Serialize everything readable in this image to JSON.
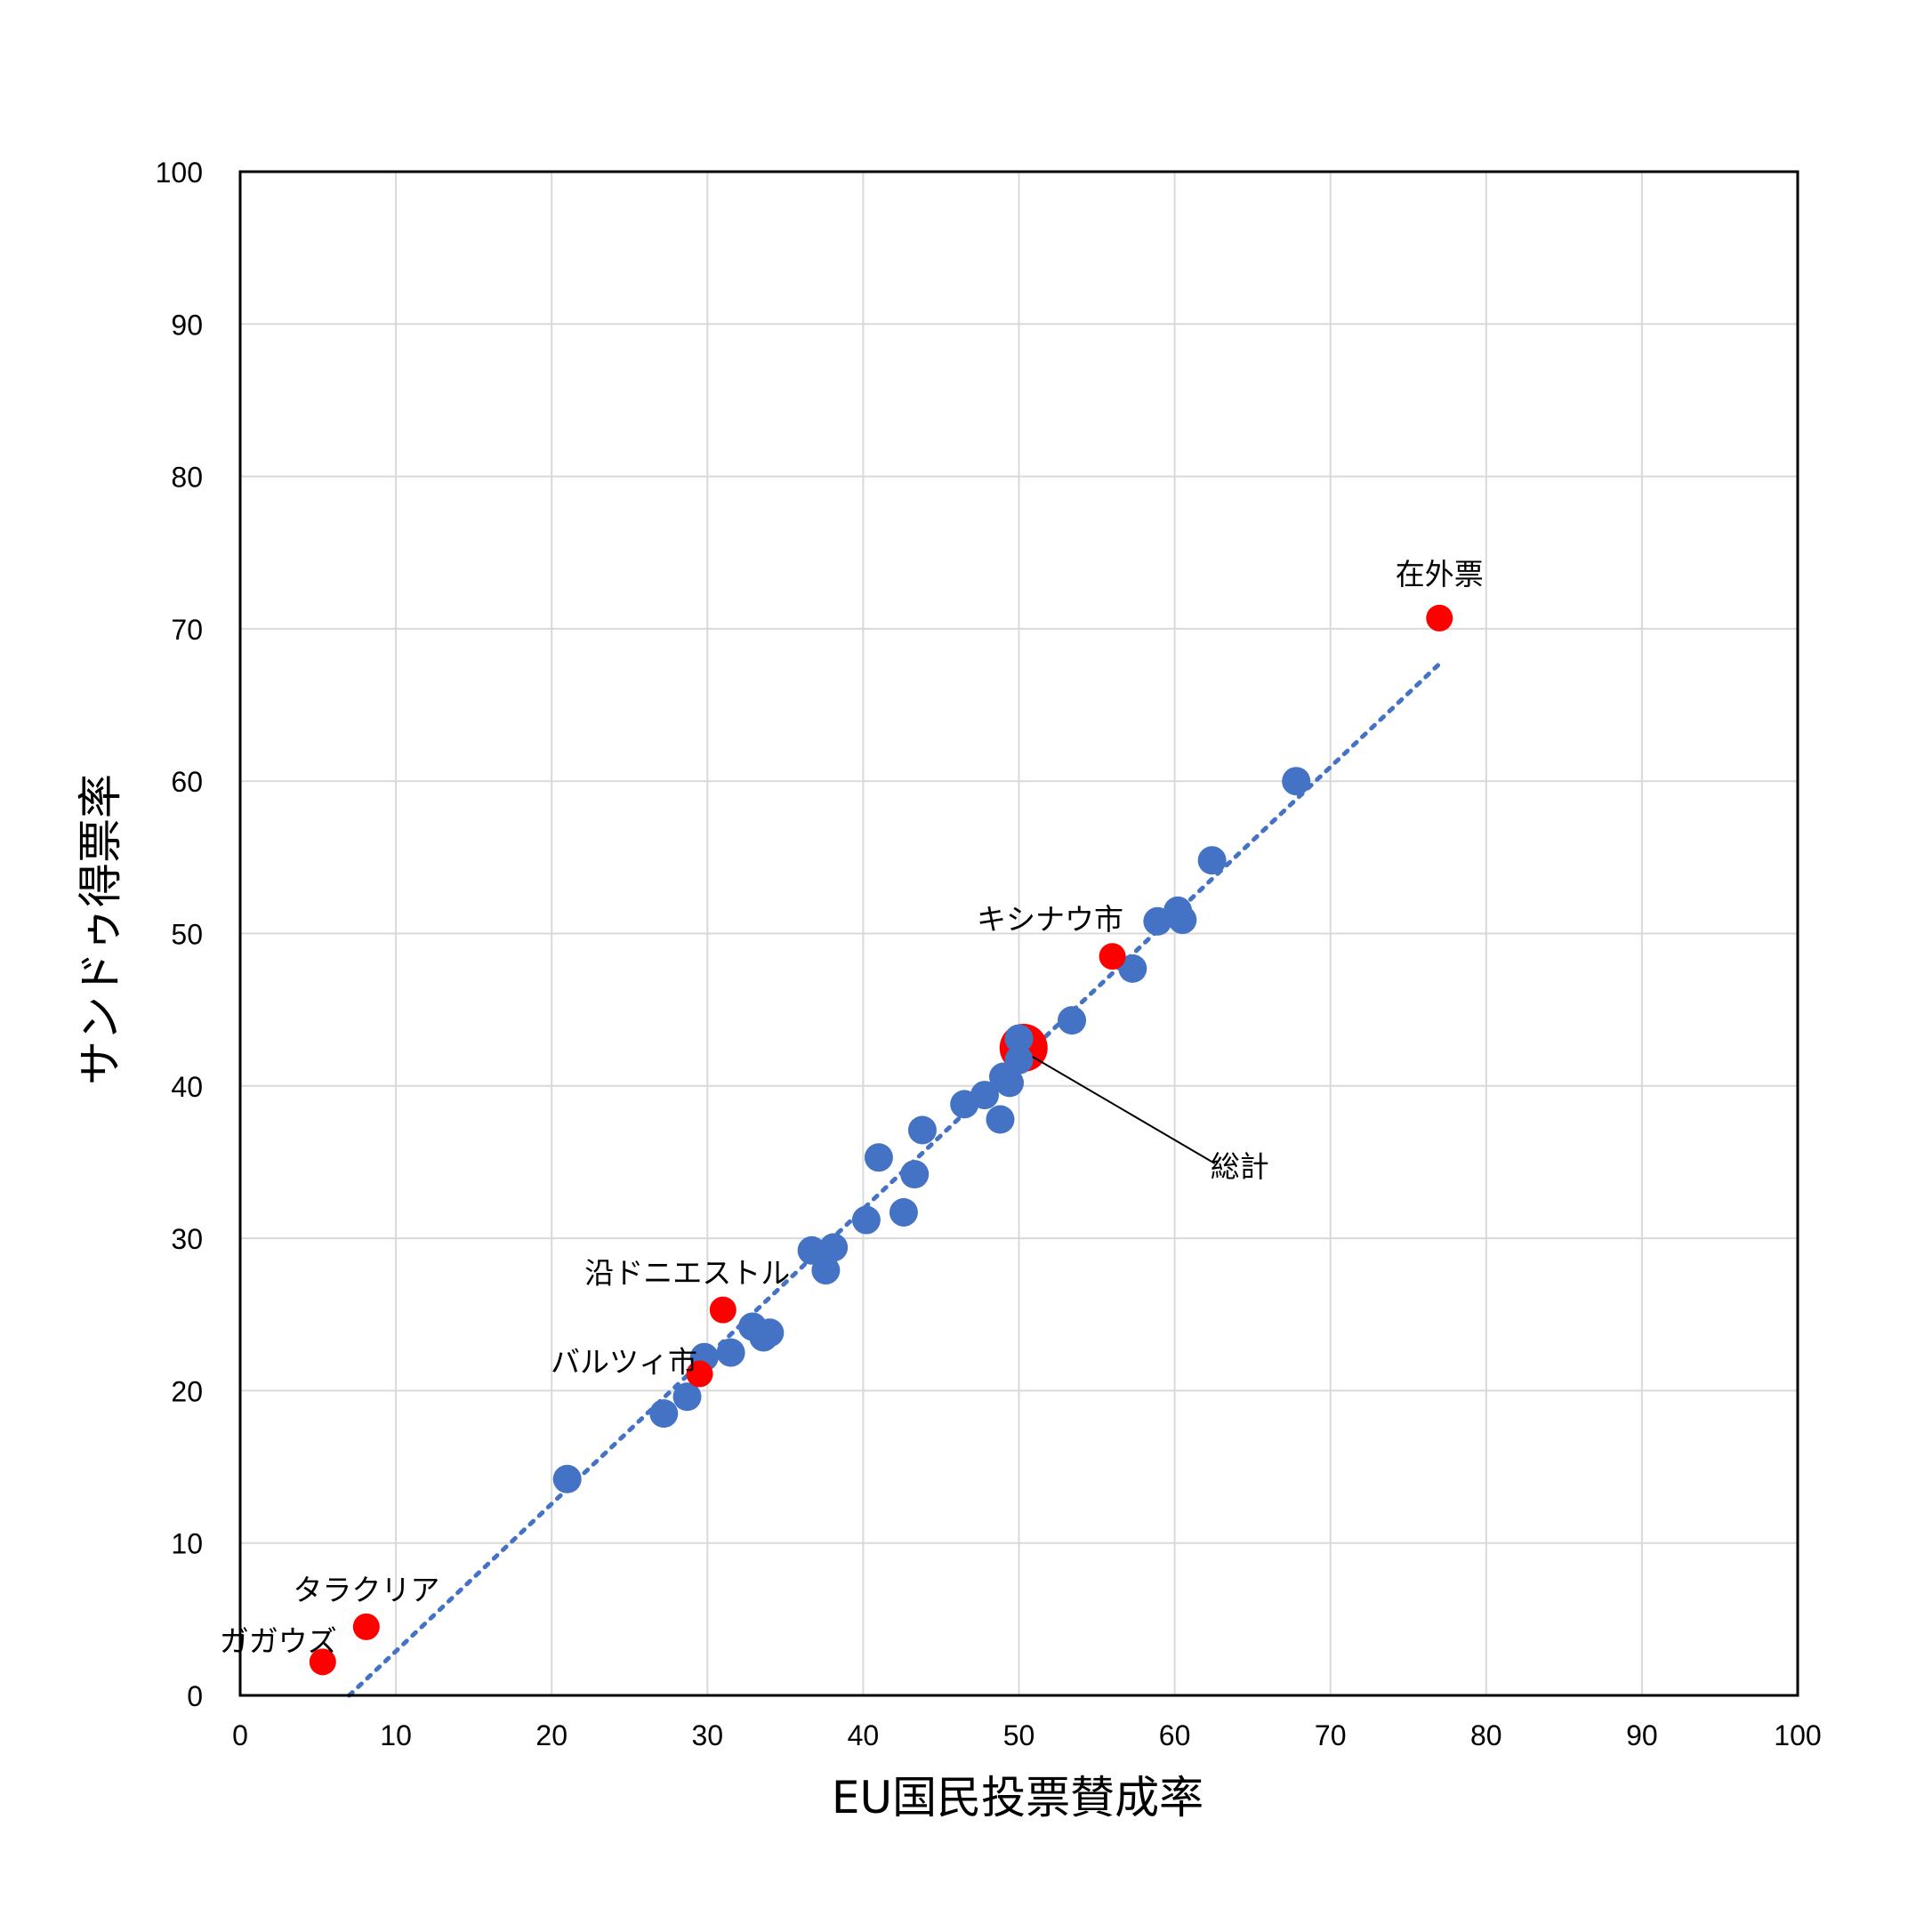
{
  "chart_data": {
    "type": "scatter",
    "title": "",
    "xlabel": "EU国民投票賛成率",
    "ylabel": "サンドゥ得票率",
    "xlim": [
      0,
      100
    ],
    "ylim": [
      0,
      100
    ],
    "x_ticks": [
      "0",
      "10",
      "20",
      "30",
      "40",
      "50",
      "60",
      "70",
      "80",
      "90",
      "100"
    ],
    "y_ticks": [
      "0",
      "10",
      "20",
      "30",
      "40",
      "50",
      "60",
      "70",
      "80",
      "90",
      "100"
    ],
    "grid": true,
    "colors": {
      "districts": "#4472C4",
      "highlight": "#FF0000",
      "trendline": "#4472C4"
    },
    "trendline": {
      "style": "dotted",
      "from": [
        7.0,
        0.0
      ],
      "to": [
        77.0,
        67.7
      ]
    },
    "series": [
      {
        "points": [
          [
            21.0,
            14.2
          ],
          [
            27.2,
            18.5
          ],
          [
            28.7,
            19.6
          ],
          [
            29.8,
            22.2
          ],
          [
            31.5,
            22.5
          ],
          [
            32.9,
            24.2
          ],
          [
            33.6,
            23.5
          ],
          [
            34.0,
            23.8
          ],
          [
            36.7,
            29.2
          ],
          [
            37.6,
            27.9
          ],
          [
            38.1,
            29.4
          ],
          [
            40.2,
            31.2
          ],
          [
            41.0,
            35.3
          ],
          [
            42.6,
            31.7
          ],
          [
            43.3,
            34.2
          ],
          [
            43.8,
            37.1
          ],
          [
            46.5,
            38.8
          ],
          [
            47.8,
            39.4
          ],
          [
            48.8,
            37.8
          ],
          [
            49.0,
            40.6
          ],
          [
            49.4,
            40.2
          ],
          [
            50.0,
            41.7
          ],
          [
            50.0,
            43.1
          ],
          [
            53.4,
            44.3
          ],
          [
            57.3,
            47.7
          ],
          [
            58.9,
            50.8
          ],
          [
            60.2,
            51.5
          ],
          [
            60.5,
            50.9
          ],
          [
            62.4,
            54.8
          ],
          [
            67.8,
            60.0
          ]
        ]
      },
      {
        "points": [
          {
            "x": 77.0,
            "y": 70.7,
            "label": "在外票"
          },
          {
            "x": 56.0,
            "y": 48.5,
            "label": "キシナウ市"
          },
          {
            "x": 31.0,
            "y": 25.3,
            "label": "沿ドニエストル"
          },
          {
            "x": 29.5,
            "y": 21.1,
            "label": "バルツィ市"
          },
          {
            "x": 8.1,
            "y": 4.5,
            "label": "タラクリア"
          },
          {
            "x": 5.3,
            "y": 2.2,
            "label": "ガガウズ"
          },
          {
            "x": 50.3,
            "y": 42.5,
            "label": "総計",
            "large": true
          }
        ]
      }
    ]
  }
}
